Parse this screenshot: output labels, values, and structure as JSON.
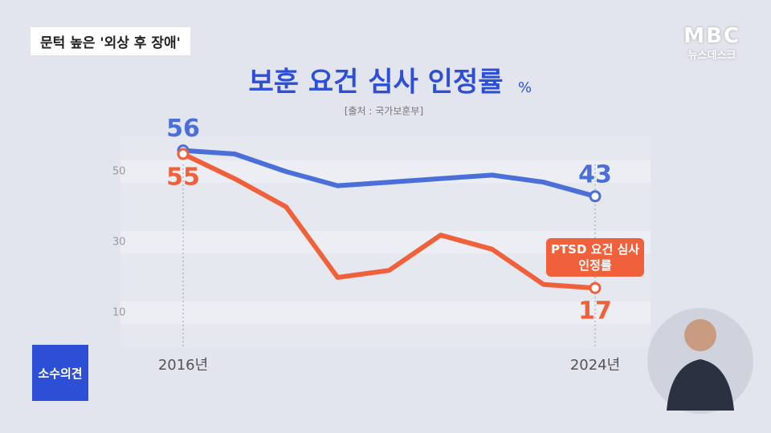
{
  "banner": "문턱 높은 '외상 후 장애'",
  "logo": {
    "brand": "MBC",
    "program": "뉴스데스크"
  },
  "corner_badge": "소수의견",
  "chart_data": {
    "type": "line",
    "title": "보훈 요건 심사 인정률",
    "unit": "%",
    "source": "[출처 : 국가보훈부]",
    "categories": [
      "2016년",
      null,
      null,
      null,
      null,
      null,
      null,
      null,
      "2024년"
    ],
    "series": [
      {
        "color": "#4a6fd8",
        "values": [
          56,
          55,
          50,
          46,
          47,
          48,
          49,
          47,
          43
        ]
      },
      {
        "name": "PTSD 요건 심사 인정률",
        "color": "#f0603a",
        "values": [
          55,
          48,
          40,
          20,
          22,
          32,
          28,
          18,
          17
        ]
      }
    ],
    "ylim": [
      0,
      60
    ],
    "yticks": [
      10,
      30,
      50
    ],
    "grid": true
  }
}
